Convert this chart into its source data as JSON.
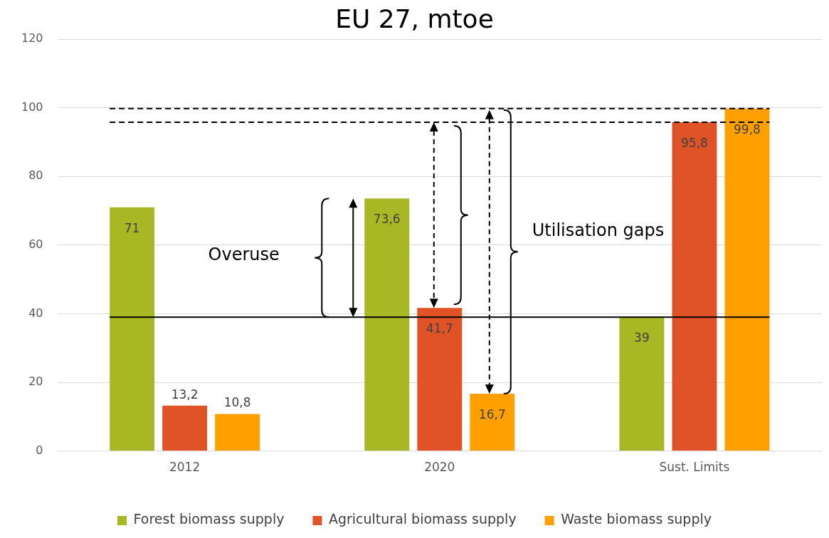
{
  "chart_data": {
    "type": "bar",
    "title": "EU 27, mtoe",
    "categories": [
      "2012",
      "2020",
      "Sust. Limits"
    ],
    "series": [
      {
        "name": "Forest biomass supply",
        "color": "#a8b825",
        "values": [
          71,
          73.6,
          39
        ],
        "value_labels": [
          "71",
          "73,6",
          "39"
        ]
      },
      {
        "name": "Agricultural biomass supply",
        "color": "#e05327",
        "values": [
          13.2,
          41.7,
          95.8
        ],
        "value_labels": [
          "13,2",
          "41,7",
          "95,8"
        ]
      },
      {
        "name": "Waste biomass supply",
        "color": "#ffa000",
        "values": [
          10.8,
          16.7,
          99.8
        ],
        "value_labels": [
          "10,8",
          "16,7",
          "99,8"
        ]
      }
    ],
    "ylim": [
      0,
      120
    ],
    "yticks": [
      0,
      20,
      40,
      60,
      80,
      100,
      120
    ],
    "grid": "y",
    "legend": "bottom",
    "ref_lines": [
      {
        "axis": "y",
        "value": 39,
        "color": "#000000",
        "line_style": "solid"
      },
      {
        "axis": "y",
        "value": 99.8,
        "color": "#000000",
        "line_style": "dashed"
      },
      {
        "axis": "y",
        "value": 95.8,
        "color": "#000000",
        "line_style": "dashed"
      }
    ],
    "annotations": [
      "Overuse",
      "Utilisation gaps"
    ]
  }
}
